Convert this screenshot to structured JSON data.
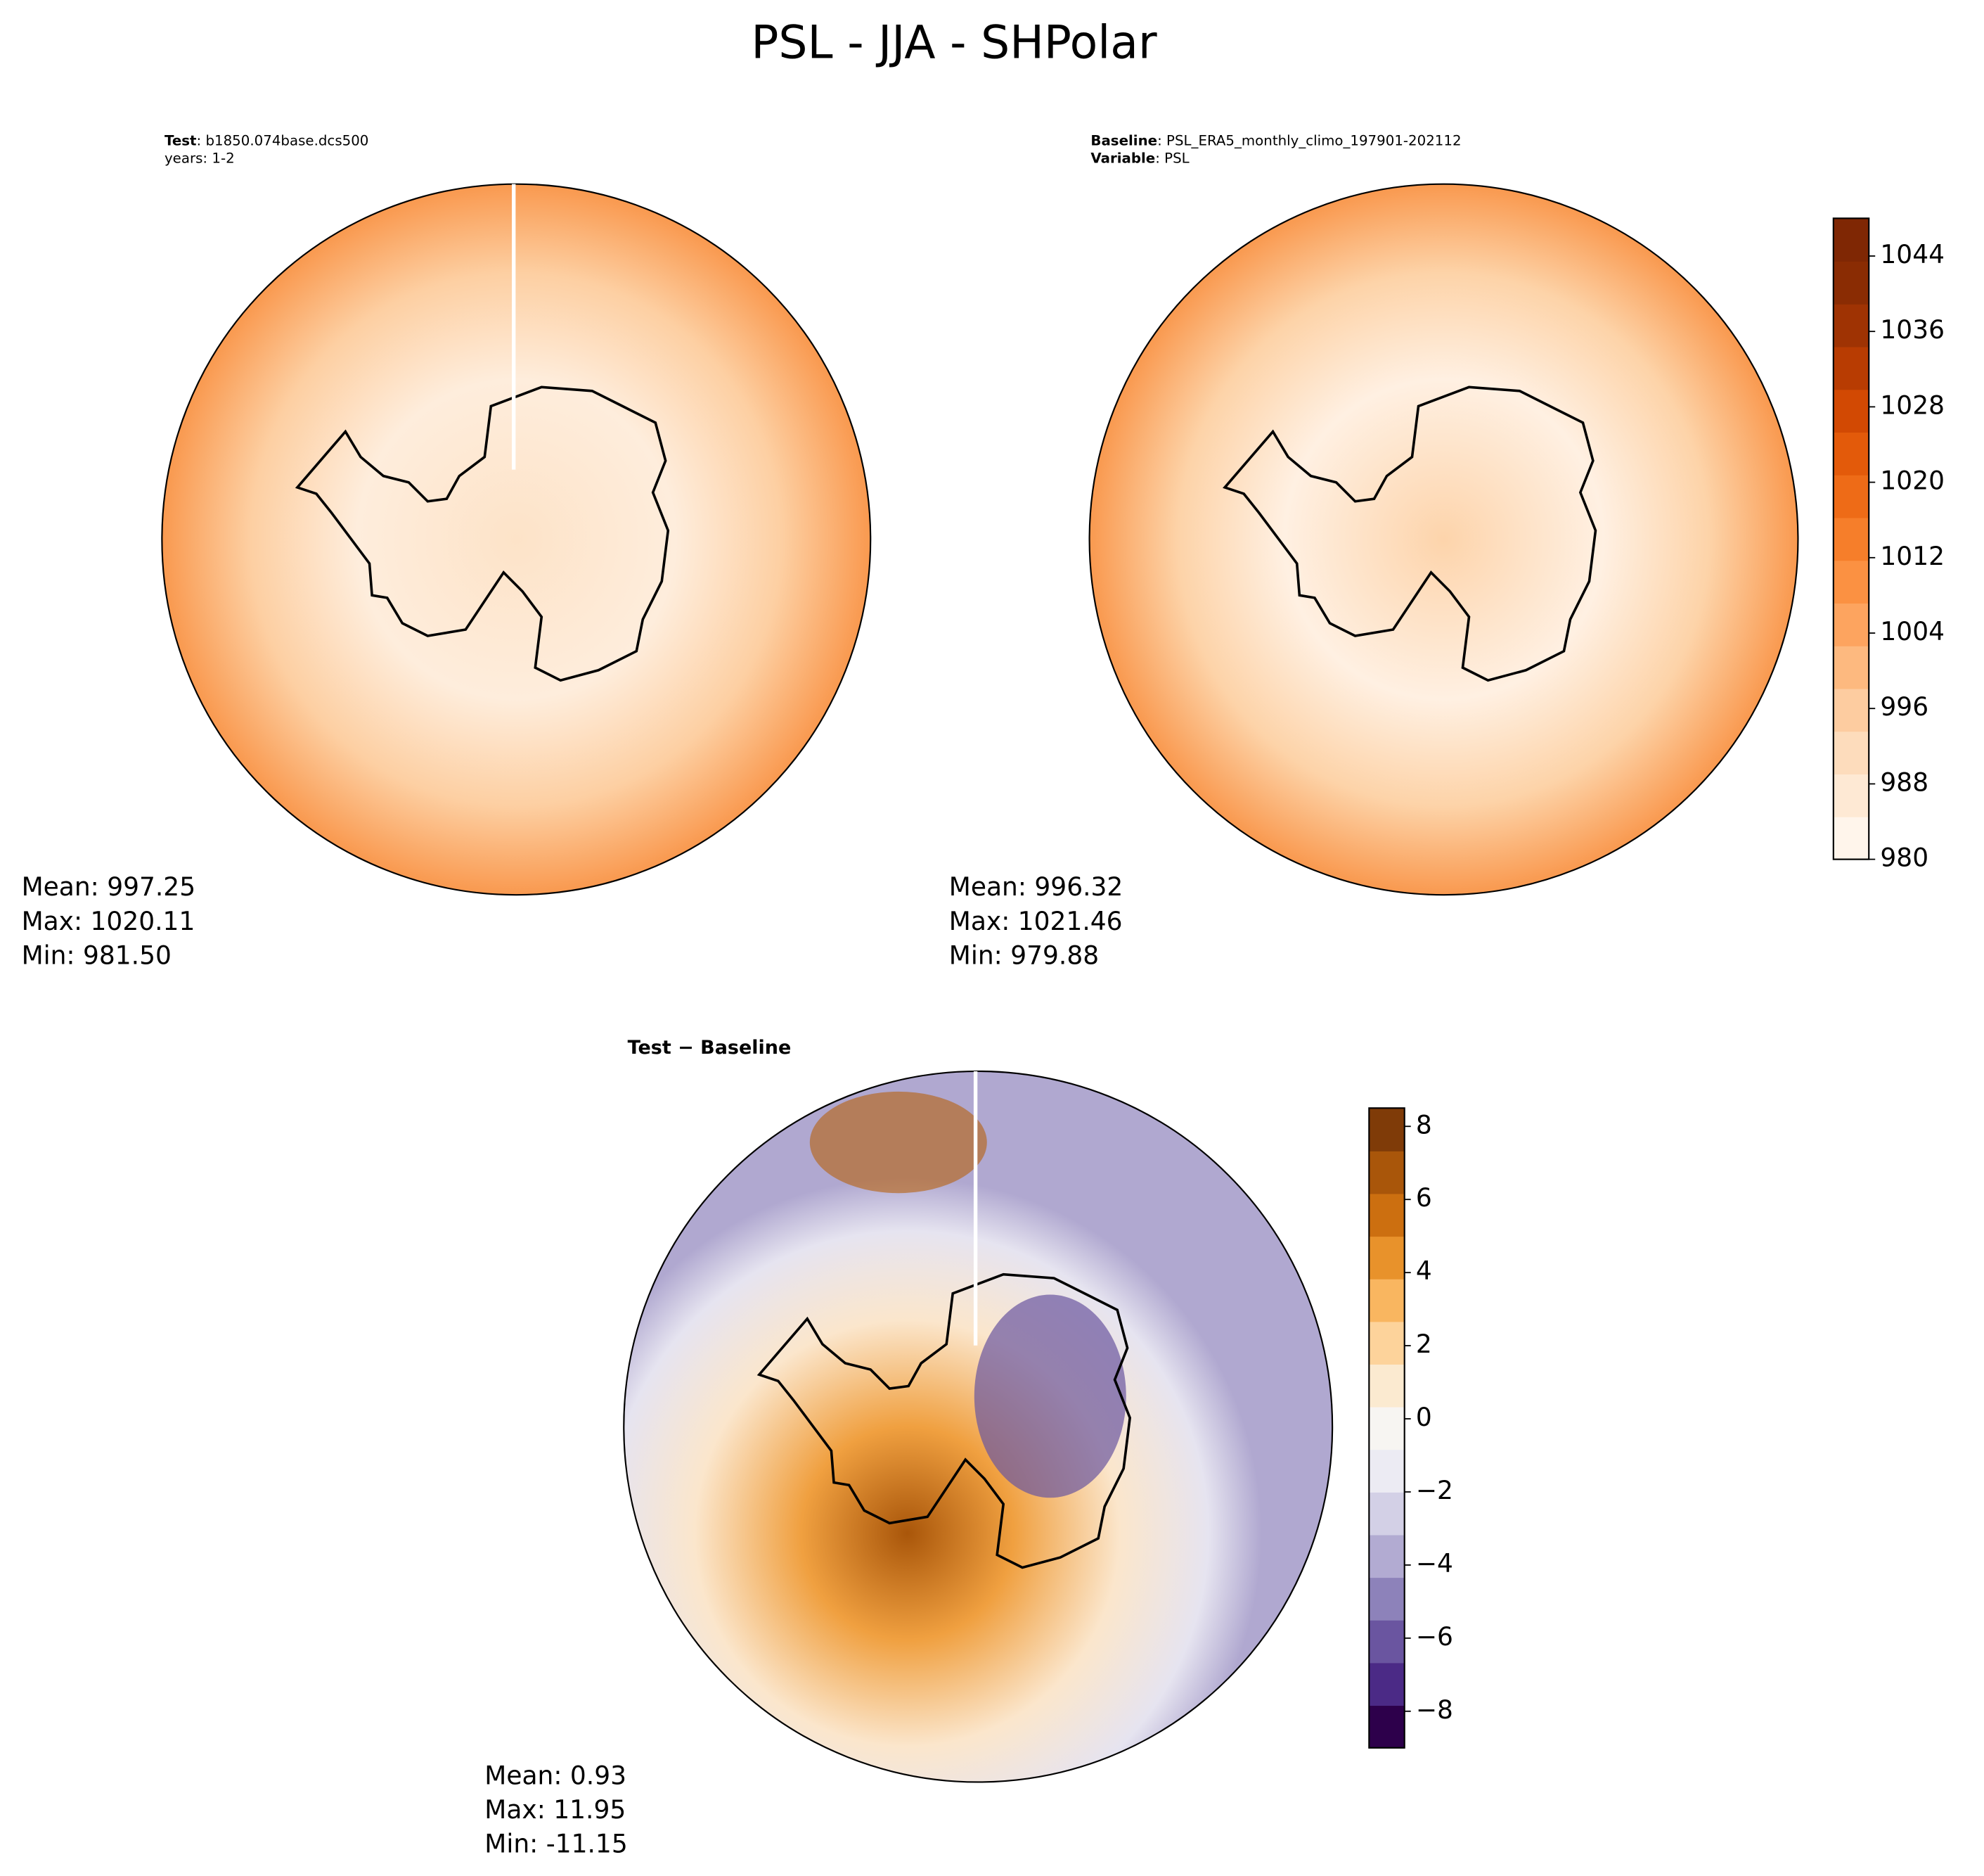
{
  "title": "PSL - JJA - SHPolar",
  "chart_data": [
    {
      "type": "map",
      "annotations": [
        {
          "label": "Test",
          "text": ": b1850.074base.dcs500"
        },
        {
          "text": "years: 1-2"
        }
      ],
      "stats": [
        "Mean: 997.25",
        "Max: 1020.11",
        "Min: 981.50"
      ]
    },
    {
      "type": "map",
      "annotations": [
        {
          "label": "Baseline",
          "text": ": PSL_ERA5_monthly_climo_197901-202112"
        },
        {
          "label": "Variable",
          "text": ": PSL"
        }
      ],
      "stats": [
        "Mean: 996.32",
        "Max: 1021.46",
        "Min: 979.88"
      ],
      "colorbar": {
        "ylim": [
          980,
          1048
        ],
        "yticks": [
          980,
          988,
          996,
          1004,
          1012,
          1020,
          1028,
          1036,
          1044
        ],
        "colors": [
          "#fff5eb",
          "#fee9d4",
          "#fddcbc",
          "#fdcca0",
          "#fdb97f",
          "#fda45f",
          "#fb9142",
          "#f67e2a",
          "#ee6b17",
          "#e35a0a",
          "#d24903",
          "#b83c02",
          "#9f3303",
          "#8a2c03",
          "#7f2704"
        ]
      }
    },
    {
      "type": "map",
      "title": "Test − Baseline",
      "stats": [
        "Mean:  0.93",
        "Max: 11.95",
        "Min: -11.15"
      ],
      "colorbar": {
        "ylim": [
          -9,
          8.5
        ],
        "yticks": [
          {
            "value": -8,
            "label": "−8"
          },
          {
            "value": -6,
            "label": "−6"
          },
          {
            "value": -4,
            "label": "−4"
          },
          {
            "value": -2,
            "label": "−2"
          },
          0,
          2,
          4,
          6,
          8
        ],
        "colors": [
          "#2d004b",
          "#4b2a86",
          "#6a55a0",
          "#8d82ba",
          "#b2abd2",
          "#d3d0e6",
          "#ecebf3",
          "#f7f5f2",
          "#fbead0",
          "#fdd39b",
          "#f9b660",
          "#e8922b",
          "#cc6f10",
          "#a9560a",
          "#7f3b08"
        ]
      }
    }
  ]
}
